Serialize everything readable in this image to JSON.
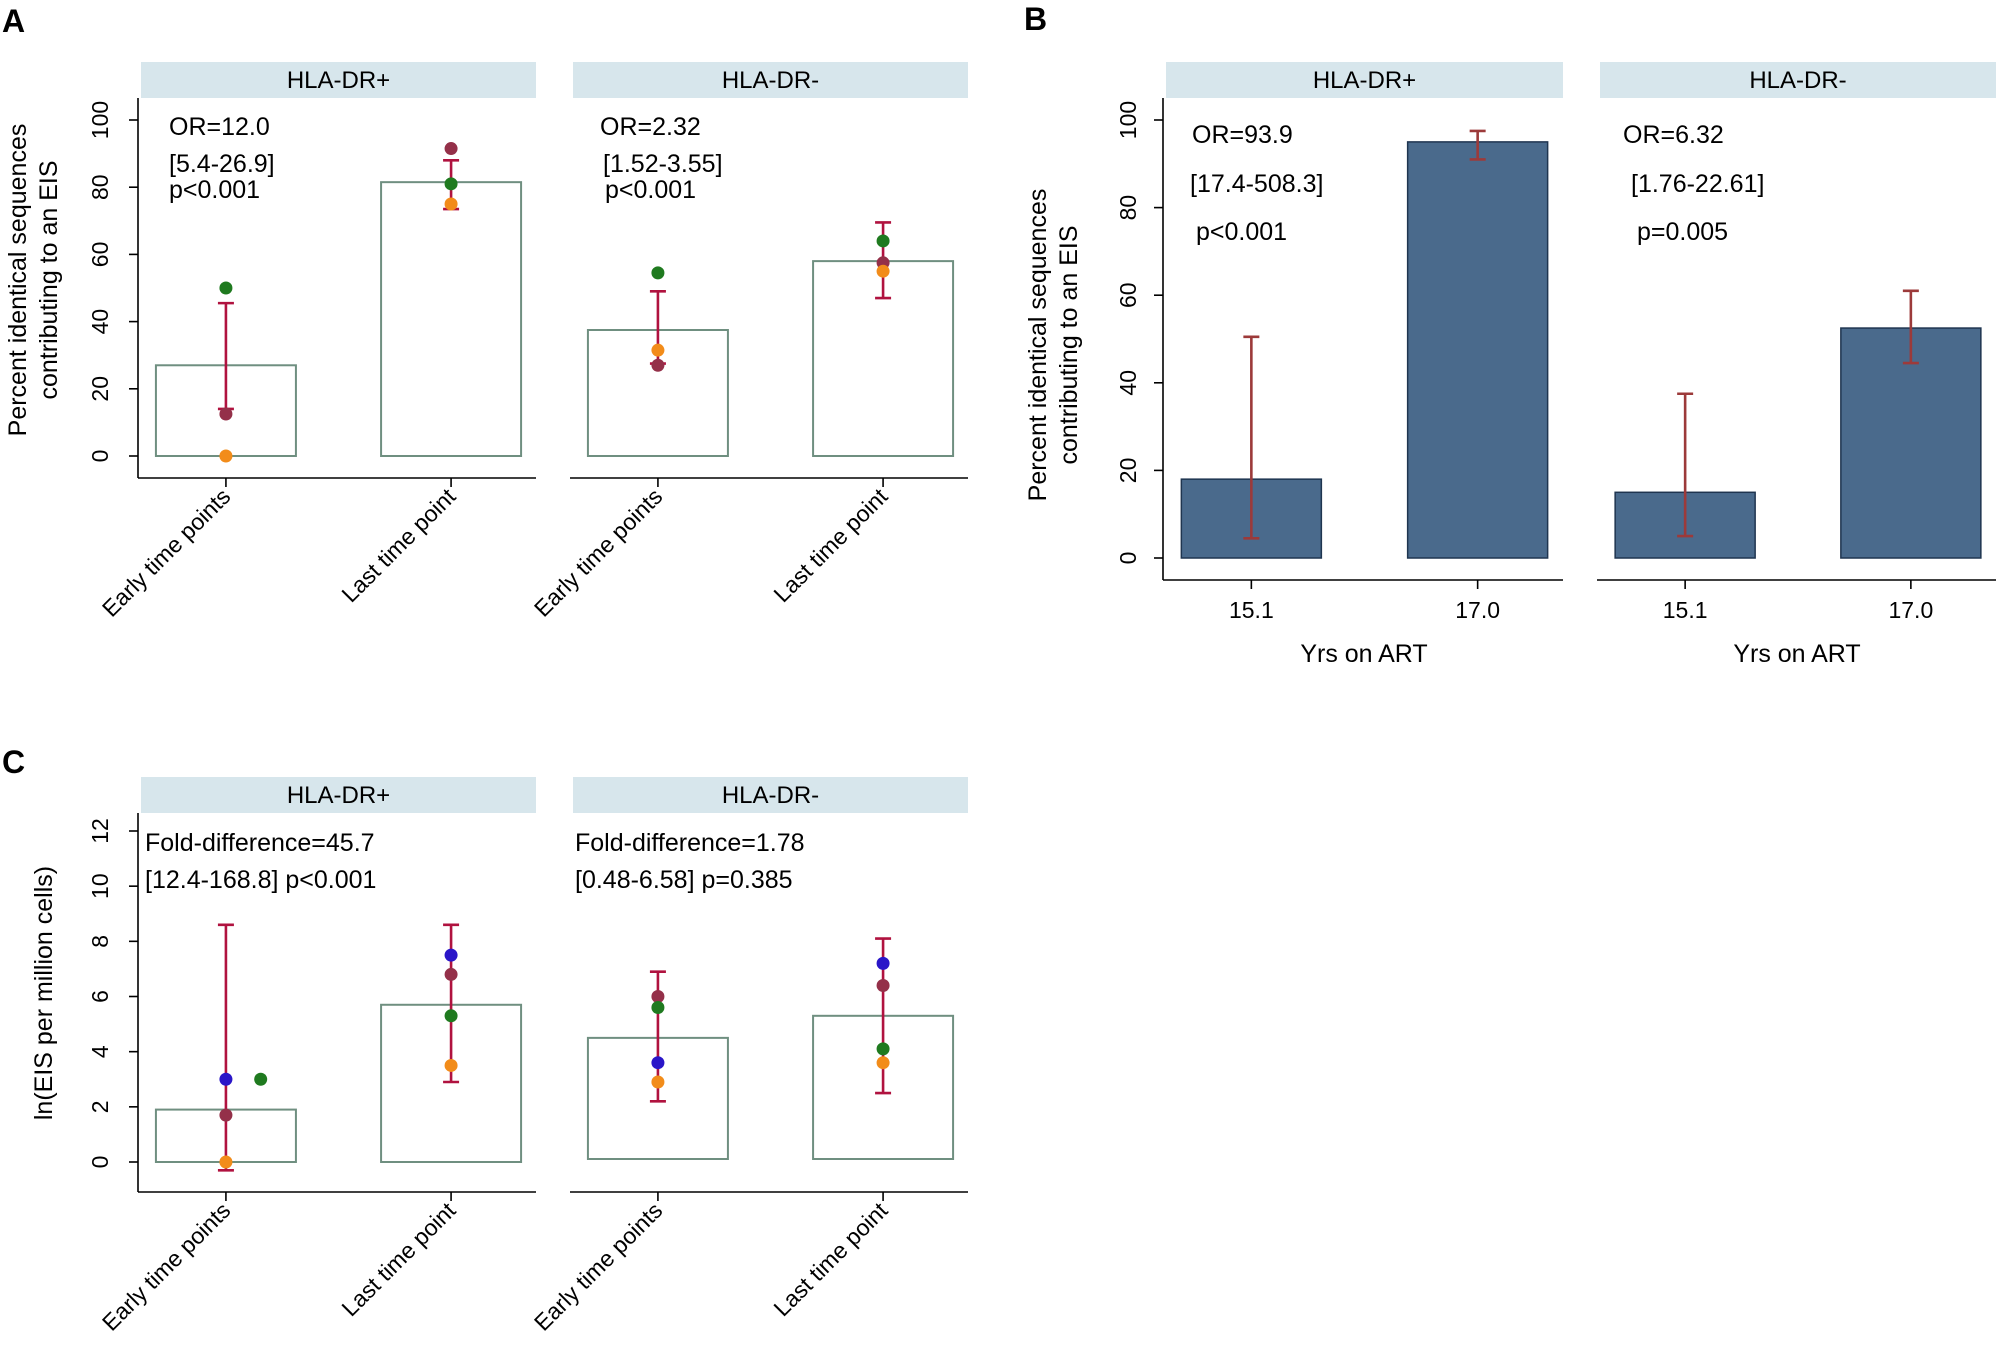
{
  "colors": {
    "strip_bg": "#d7e6ec",
    "axis": "#000000",
    "open_bar_stroke": "#6f8f80",
    "filled_bar": "#4a6a8c",
    "filled_bar_stroke": "#1f3550",
    "errbar_crimson": "#b0123f",
    "errbar_brown": "#9c3a3a",
    "pt_green": "#1f7a1f",
    "pt_maroon": "#943049",
    "pt_orange": "#f28c1a",
    "pt_blue": "#2a16c8"
  },
  "chart_data": [
    {
      "panel": "A",
      "type": "bar",
      "ylabel": [
        "Percent identical sequences",
        "contributing to an EIS"
      ],
      "ylim": [
        0,
        100
      ],
      "yticks": [
        "0",
        "20",
        "40",
        "60",
        "80",
        "100"
      ],
      "categories": [
        "Early time points",
        "Last time point"
      ],
      "facets": [
        {
          "title": "HLA-DR+",
          "annotation": [
            "OR=12.0",
            "[5.4-26.9]",
            "p<0.001"
          ],
          "values": [
            27,
            81.5
          ],
          "errors": [
            [
              14,
              45.5
            ],
            [
              73.5,
              88
            ]
          ],
          "points": [
            [
              {
                "y": 50,
                "color": "pt_green"
              },
              {
                "y": 12.5,
                "color": "pt_maroon"
              },
              {
                "y": 0,
                "color": "pt_orange"
              }
            ],
            [
              {
                "y": 91.5,
                "color": "pt_maroon"
              },
              {
                "y": 81,
                "color": "pt_green"
              },
              {
                "y": 75,
                "color": "pt_orange"
              }
            ]
          ]
        },
        {
          "title": "HLA-DR-",
          "annotation": [
            "OR=2.32",
            "[1.52-3.55]",
            "p<0.001"
          ],
          "values": [
            37.5,
            58
          ],
          "errors": [
            [
              27.5,
              49
            ],
            [
              47,
              69.5
            ]
          ],
          "points": [
            [
              {
                "y": 54.5,
                "color": "pt_green"
              },
              {
                "y": 31.5,
                "color": "pt_orange"
              },
              {
                "y": 27,
                "color": "pt_maroon"
              }
            ],
            [
              {
                "y": 64,
                "color": "pt_green"
              },
              {
                "y": 57.5,
                "color": "pt_maroon"
              },
              {
                "y": 55,
                "color": "pt_orange"
              }
            ]
          ]
        }
      ]
    },
    {
      "panel": "B",
      "type": "bar",
      "ylabel": [
        "Percent identical sequences",
        "contributing to an EIS"
      ],
      "xlabel": "Yrs on ART",
      "ylim": [
        0,
        100
      ],
      "yticks": [
        "0",
        "20",
        "40",
        "60",
        "80",
        "100"
      ],
      "categories": [
        "15.1",
        "17.0"
      ],
      "facets": [
        {
          "title": "HLA-DR+",
          "annotation": [
            "OR=93.9",
            "[17.4-508.3]",
            "p<0.001"
          ],
          "values": [
            18,
            95
          ],
          "errors": [
            [
              4.5,
              50.5
            ],
            [
              91,
              97.5
            ]
          ]
        },
        {
          "title": "HLA-DR-",
          "annotation": [
            "OR=6.32",
            "[1.76-22.61]",
            "p=0.005"
          ],
          "values": [
            15,
            52.5
          ],
          "errors": [
            [
              5,
              37.5
            ],
            [
              44.5,
              61
            ]
          ]
        }
      ]
    },
    {
      "panel": "C",
      "type": "bar",
      "ylabel": [
        "ln(EIS per million cells)"
      ],
      "ylim": [
        0,
        12
      ],
      "yticks": [
        "0",
        "2",
        "4",
        "6",
        "8",
        "10",
        "12"
      ],
      "categories": [
        "Early time points",
        "Last time point"
      ],
      "facets": [
        {
          "title": "HLA-DR+",
          "annotation": [
            "Fold-difference=45.7",
            "[12.4-168.8]   p<0.001"
          ],
          "values": [
            1.9,
            5.7
          ],
          "errors": [
            [
              -0.3,
              8.6
            ],
            [
              2.9,
              8.6
            ]
          ],
          "points": [
            [
              {
                "y": 3.0,
                "color": "pt_blue"
              },
              {
                "y": 1.7,
                "color": "pt_maroon"
              },
              {
                "y": 0,
                "color": "pt_orange"
              },
              {
                "y": 3.0,
                "color": "pt_green",
                "offset": 0.22
              }
            ],
            [
              {
                "y": 7.5,
                "color": "pt_blue"
              },
              {
                "y": 6.8,
                "color": "pt_maroon"
              },
              {
                "y": 5.3,
                "color": "pt_green"
              },
              {
                "y": 3.5,
                "color": "pt_orange"
              }
            ]
          ]
        },
        {
          "title": "HLA-DR-",
          "annotation": [
            "Fold-difference=1.78",
            "[0.48-6.58]   p=0.385"
          ],
          "values": [
            4.5,
            5.3
          ],
          "errors": [
            [
              2.2,
              6.9
            ],
            [
              2.5,
              8.1
            ]
          ],
          "points": [
            [
              {
                "y": 6.0,
                "color": "pt_maroon"
              },
              {
                "y": 5.6,
                "color": "pt_green"
              },
              {
                "y": 3.6,
                "color": "pt_blue"
              },
              {
                "y": 2.9,
                "color": "pt_orange"
              }
            ],
            [
              {
                "y": 7.2,
                "color": "pt_blue"
              },
              {
                "y": 6.4,
                "color": "pt_maroon"
              },
              {
                "y": 4.1,
                "color": "pt_green"
              },
              {
                "y": 3.6,
                "color": "pt_orange"
              }
            ]
          ]
        }
      ]
    }
  ]
}
